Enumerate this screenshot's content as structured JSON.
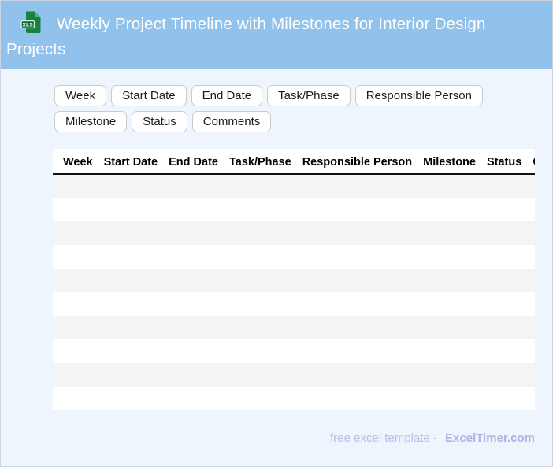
{
  "header": {
    "title": "Weekly Project Timeline with Milestones for Interior Design Projects",
    "icon": "xls-file-icon",
    "icon_label": "XLS"
  },
  "chips": {
    "items": [
      "Week",
      "Start Date",
      "End Date",
      "Task/Phase",
      "Responsible Person",
      "Milestone",
      "Status",
      "Comments"
    ]
  },
  "table": {
    "columns": [
      "Week",
      "Start Date",
      "End Date",
      "Task/Phase",
      "Responsible Person",
      "Milestone",
      "Status",
      "Comments"
    ],
    "visible_empty_rows": 10,
    "empty_cell": ""
  },
  "footer": {
    "text": "free excel template -",
    "brand": "ExcelTimer.com"
  },
  "colors": {
    "header_background": "#90c2ec",
    "page_background": "#eff5fd",
    "page_border": "#ccd4e2",
    "row_stripe": "#f4f4f4",
    "chip_border": "#cbcbcb",
    "table_header_rule": "#111111",
    "footer_text": "#b5c0ea",
    "footer_brand": "#a9b6e6",
    "icon_green": "#17813f"
  }
}
